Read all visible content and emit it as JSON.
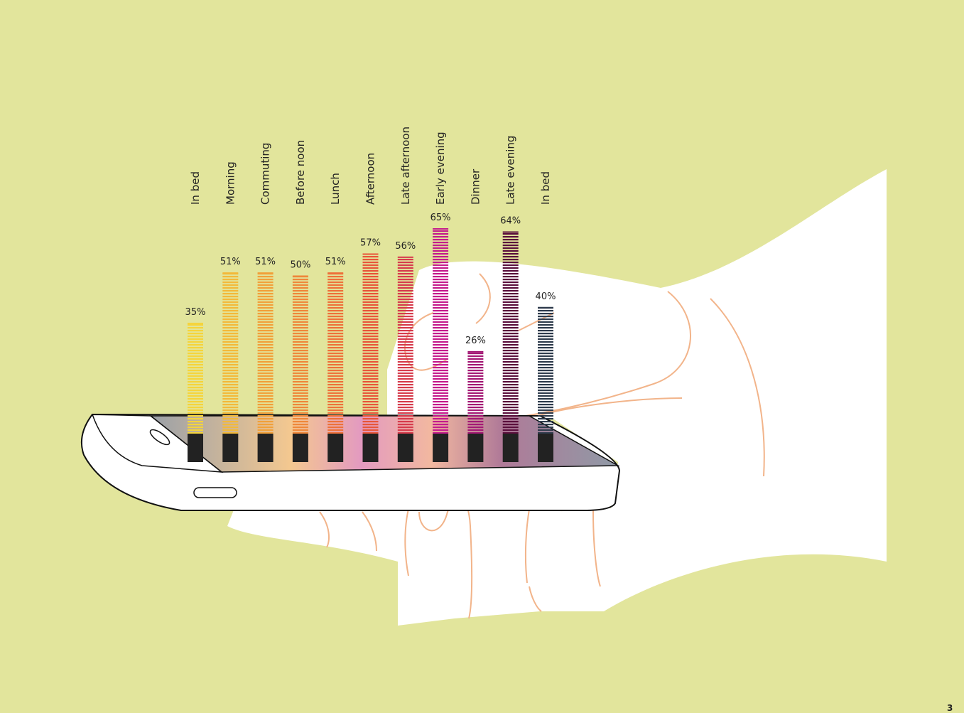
{
  "chart_data": {
    "type": "bar",
    "categories": [
      "In bed",
      "Morning",
      "Commuting",
      "Before noon",
      "Lunch",
      "Afternoon",
      "Late afternoon",
      "Early evening",
      "Dinner",
      "Late evening",
      "In bed"
    ],
    "values": [
      35,
      51,
      51,
      50,
      51,
      57,
      56,
      65,
      26,
      64,
      40
    ],
    "value_labels": [
      "35%",
      "51%",
      "51%",
      "50%",
      "51%",
      "57%",
      "56%",
      "65%",
      "26%",
      "64%",
      "40%"
    ],
    "colors": [
      "#f5d43c",
      "#f3b93a",
      "#f1a03a",
      "#ef873a",
      "#ee713a",
      "#e8553a",
      "#d63b4c",
      "#c41b8c",
      "#a31874",
      "#5a0e3c",
      "#2e3b4c"
    ]
  },
  "page_number": "3"
}
